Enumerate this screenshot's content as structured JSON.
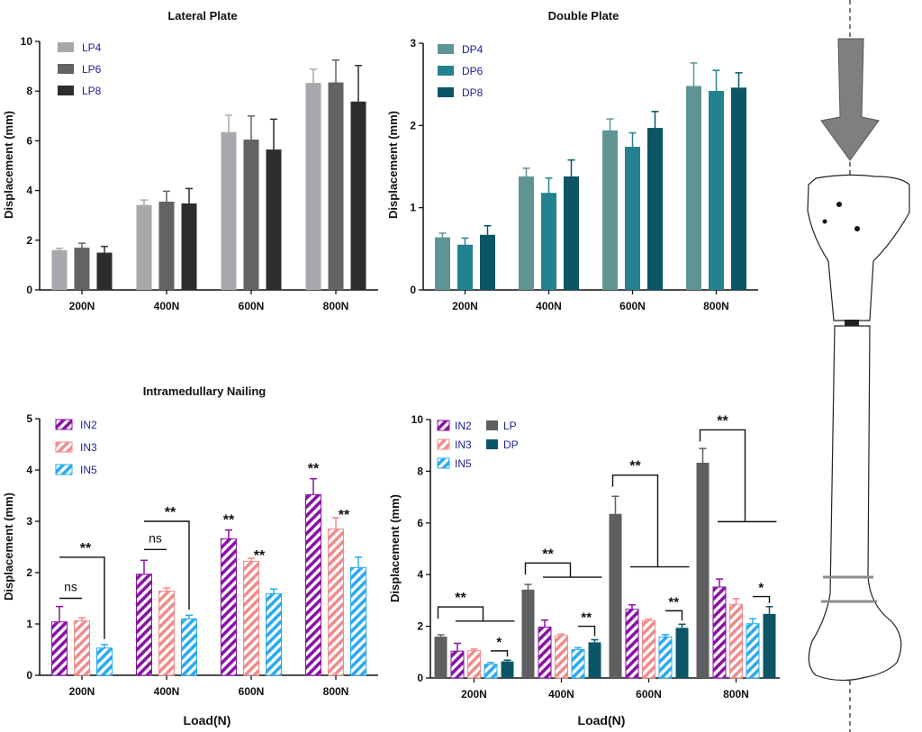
{
  "colors": {
    "LP4": "#a7a8ac",
    "LP6": "#636366",
    "LP8": "#2d2d2f",
    "DP4": "#5f9495",
    "DP6": "#22828f",
    "DP8": "#0b5566",
    "IN2": "#8a12a6",
    "IN3": "#f08b8b",
    "IN5": "#2aaaf0",
    "LP": "#5f5f62",
    "DP": "#0b5566",
    "legend_text": "#1f1f8f",
    "axis": "#111111"
  },
  "chart_data": [
    {
      "id": "lateral",
      "type": "bar",
      "title": "Lateral Plate",
      "xlabel": "",
      "ylabel": "Displacement (mm)",
      "categories": [
        "200N",
        "400N",
        "600N",
        "800N"
      ],
      "ylim": [
        0,
        10
      ],
      "yticks": [
        0,
        2,
        4,
        6,
        8,
        10
      ],
      "series": [
        {
          "name": "LP4",
          "values": [
            1.6,
            3.42,
            6.35,
            8.33
          ],
          "errors": [
            0.07,
            0.2,
            0.68,
            0.55
          ]
        },
        {
          "name": "LP6",
          "values": [
            1.7,
            3.55,
            6.05,
            8.35
          ],
          "errors": [
            0.18,
            0.42,
            0.95,
            0.9
          ]
        },
        {
          "name": "LP8",
          "values": [
            1.5,
            3.48,
            5.65,
            7.58
          ],
          "errors": [
            0.25,
            0.6,
            1.22,
            1.45
          ]
        }
      ],
      "legend": "top-left"
    },
    {
      "id": "double",
      "type": "bar",
      "title": "Double Plate",
      "xlabel": "",
      "ylabel": "Displacement (mm)",
      "categories": [
        "200N",
        "400N",
        "600N",
        "800N"
      ],
      "ylim": [
        0,
        3
      ],
      "yticks": [
        0,
        1,
        2,
        3
      ],
      "series": [
        {
          "name": "DP4",
          "values": [
            0.64,
            1.38,
            1.94,
            2.48
          ],
          "errors": [
            0.05,
            0.1,
            0.14,
            0.28
          ]
        },
        {
          "name": "DP6",
          "values": [
            0.55,
            1.18,
            1.74,
            2.42
          ],
          "errors": [
            0.08,
            0.18,
            0.17,
            0.25
          ]
        },
        {
          "name": "DP8",
          "values": [
            0.67,
            1.38,
            1.97,
            2.46
          ],
          "errors": [
            0.11,
            0.2,
            0.2,
            0.18
          ]
        }
      ],
      "legend": "top-left"
    },
    {
      "id": "nailing",
      "type": "bar",
      "title": "Intramedullary Nailing",
      "xlabel": "Load(N)",
      "ylabel": "Displacement (mm)",
      "categories": [
        "200N",
        "400N",
        "600N",
        "800N"
      ],
      "ylim": [
        0,
        5
      ],
      "yticks": [
        0,
        1,
        2,
        3,
        4,
        5
      ],
      "series": [
        {
          "name": "IN2",
          "values": [
            1.04,
            1.97,
            2.66,
            3.52
          ],
          "errors": [
            0.3,
            0.27,
            0.17,
            0.31
          ]
        },
        {
          "name": "IN3",
          "values": [
            1.06,
            1.64,
            2.22,
            2.85
          ],
          "errors": [
            0.06,
            0.06,
            0.06,
            0.22
          ]
        },
        {
          "name": "IN5",
          "values": [
            0.53,
            1.1,
            1.59,
            2.1
          ],
          "errors": [
            0.07,
            0.07,
            0.09,
            0.2
          ]
        }
      ],
      "legend": "top-left",
      "annotations": [
        {
          "text": "ns",
          "category": 0,
          "kind": "line",
          "from": 0,
          "to": 1,
          "y": 1.5
        },
        {
          "text": "**",
          "category": 0,
          "kind": "bracket",
          "from": 0,
          "to": 2,
          "y": 2.3
        },
        {
          "text": "ns",
          "category": 1,
          "kind": "line",
          "from": 0,
          "to": 1,
          "y": 2.45
        },
        {
          "text": "**",
          "category": 1,
          "kind": "bracket",
          "from": 0,
          "to": 2,
          "y": 3.0
        },
        {
          "text": "**",
          "category": 2,
          "kind": "star",
          "series": 0
        },
        {
          "text": "**",
          "category": 2,
          "kind": "star",
          "series": 1
        },
        {
          "text": "**",
          "category": 3,
          "kind": "star",
          "series": 0
        },
        {
          "text": "**",
          "category": 3,
          "kind": "star",
          "series": 1
        }
      ]
    },
    {
      "id": "comparison",
      "type": "bar",
      "title": "",
      "xlabel": "Load(N)",
      "ylabel": "Displacement (mm)",
      "categories": [
        "200N",
        "400N",
        "600N",
        "800N"
      ],
      "ylim": [
        0,
        10
      ],
      "yticks": [
        0,
        2,
        4,
        6,
        8,
        10
      ],
      "series": [
        {
          "name": "LP",
          "values": [
            1.6,
            3.42,
            6.35,
            8.33
          ],
          "errors": [
            0.07,
            0.2,
            0.68,
            0.55
          ]
        },
        {
          "name": "IN2",
          "values": [
            1.04,
            1.97,
            2.66,
            3.52
          ],
          "errors": [
            0.3,
            0.27,
            0.17,
            0.31
          ]
        },
        {
          "name": "IN3",
          "values": [
            1.06,
            1.64,
            2.22,
            2.85
          ],
          "errors": [
            0.06,
            0.06,
            0.06,
            0.22
          ]
        },
        {
          "name": "IN5",
          "values": [
            0.53,
            1.1,
            1.59,
            2.1
          ],
          "errors": [
            0.07,
            0.07,
            0.09,
            0.2
          ]
        },
        {
          "name": "DP",
          "values": [
            0.64,
            1.38,
            1.94,
            2.48
          ],
          "errors": [
            0.05,
            0.1,
            0.14,
            0.28
          ]
        }
      ],
      "legend_order": [
        "IN2",
        "LP",
        "IN3",
        "DP",
        "IN5"
      ],
      "legend": "top-left",
      "annotations": [
        {
          "text": "**",
          "category": 0,
          "kind": "lp-bracket",
          "y": 2.75,
          "arm": 2.2
        },
        {
          "text": "*",
          "category": 0,
          "kind": "pair",
          "y": 1.05
        },
        {
          "text": "**",
          "category": 1,
          "kind": "lp-bracket",
          "y": 4.45,
          "arm": 3.9
        },
        {
          "text": "**",
          "category": 1,
          "kind": "pair",
          "y": 2.0
        },
        {
          "text": "**",
          "category": 2,
          "kind": "lp-bracket",
          "y": 7.85,
          "arm": 4.3
        },
        {
          "text": "**",
          "category": 2,
          "kind": "pair",
          "y": 2.6
        },
        {
          "text": "**",
          "category": 3,
          "kind": "lp-bracket",
          "y": 9.6,
          "arm": 6.05
        },
        {
          "text": "*",
          "category": 3,
          "kind": "pair",
          "y": 3.15
        }
      ]
    }
  ]
}
